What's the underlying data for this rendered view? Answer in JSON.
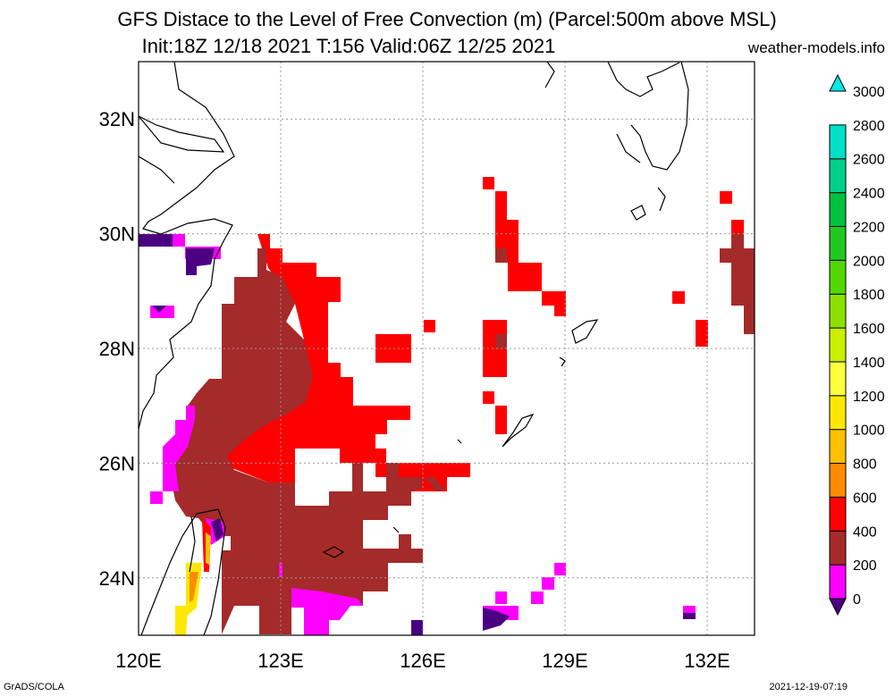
{
  "header": {
    "title_line1": "GFS Distace to the Level of Free Convection (m) (Parcel:500m above MSL)",
    "title_line2": "Init:18Z 12/18 2021 T:156 Valid:06Z 12/25 2021",
    "site": "weather-models.info"
  },
  "map": {
    "lon_range": [
      120,
      133
    ],
    "lat_range": [
      23,
      33
    ],
    "x_ticks": [
      "120E",
      "123E",
      "126E",
      "129E",
      "132E"
    ],
    "y_ticks": [
      "24N",
      "26N",
      "28N",
      "30N",
      "32N"
    ],
    "grid": true,
    "field_colors": {
      "0-200": "#4b0082",
      "200-400": "#ff00ff",
      "400-600": "#a52a2a",
      "600-800": "#ff0000",
      "800-1000": "#ff8c00",
      "1000-1200": "#ffc000",
      "1200-1400": "#ffe800",
      "1400-1600": "#ffff40",
      "1600-1800": "#c8f000",
      "1800-2000": "#8ce000",
      "2000-2200": "#50d800",
      "2200-2400": "#20c820",
      "2400-2600": "#00c040",
      "2600-2800": "#00d08a",
      "2800-3000": "#00e0c8",
      ">3000": "#00e8e8"
    }
  },
  "colorbar": {
    "labels": [
      "0",
      "200",
      "400",
      "600",
      "800",
      "1000",
      "1200",
      "1400",
      "1600",
      "1800",
      "2000",
      "2200",
      "2400",
      "2600",
      "2800",
      "3000"
    ],
    "colors": [
      "#4b0082",
      "#ff00ff",
      "#a52a2a",
      "#ff0000",
      "#ff8c00",
      "#ffc000",
      "#ffe800",
      "#ffff40",
      "#c8f000",
      "#8ce000",
      "#50d800",
      "#20c820",
      "#00c040",
      "#00d08a",
      "#00e0c8",
      "#00e8e8"
    ]
  },
  "footer": {
    "left": "GrADS/COLA",
    "right": "2021-12-19-07:19"
  }
}
